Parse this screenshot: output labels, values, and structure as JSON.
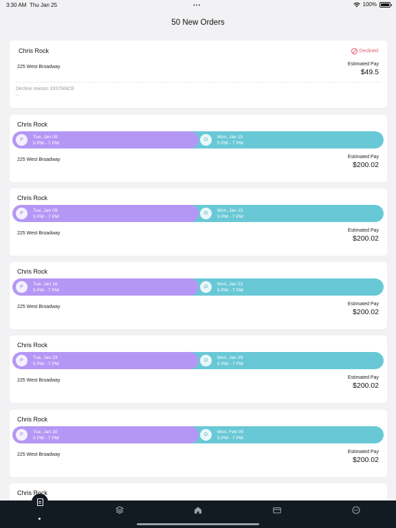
{
  "status_bar": {
    "time": "3:30 AM",
    "date": "Thu Jan 25",
    "battery": "100%"
  },
  "header": {
    "title": "50 New Orders"
  },
  "declined_order": {
    "name": "Chris Rock",
    "status": "Declined",
    "address": "225 West Broadway",
    "pay_label": "Estimated Pay",
    "pay_value": "$49.5",
    "decline_reason": "Decline reason: DISTANCE",
    "note": "--"
  },
  "orders": [
    {
      "name": "Chris Rock",
      "pickup_letter": "P",
      "pickup_date": "Tue, Jan 09",
      "pickup_time": "5 PM - 7 PM",
      "dropoff_letter": "D",
      "dropoff_date": "Mon, Jan 15",
      "dropoff_time": "5 PM - 7 PM",
      "address": "225 West Broadway",
      "pay_label": "Estimated Pay",
      "pay_value": "$200.02"
    },
    {
      "name": "Chris Rock",
      "pickup_letter": "P",
      "pickup_date": "Tue, Jan 09",
      "pickup_time": "5 PM - 7 PM",
      "dropoff_letter": "D",
      "dropoff_date": "Mon, Jan 15",
      "dropoff_time": "5 PM - 7 PM",
      "address": "225 West Broadway",
      "pay_label": "Estimated Pay",
      "pay_value": "$200.02"
    },
    {
      "name": "Chris Rock",
      "pickup_letter": "P",
      "pickup_date": "Tue, Jan 16",
      "pickup_time": "5 PM - 7 PM",
      "dropoff_letter": "D",
      "dropoff_date": "Mon, Jan 22",
      "dropoff_time": "5 PM - 7 PM",
      "address": "225 West Broadway",
      "pay_label": "Estimated Pay",
      "pay_value": "$200.02"
    },
    {
      "name": "Chris Rock",
      "pickup_letter": "P",
      "pickup_date": "Tue, Jan 23",
      "pickup_time": "5 PM - 7 PM",
      "dropoff_letter": "D",
      "dropoff_date": "Mon, Jan 29",
      "dropoff_time": "5 PM - 7 PM",
      "address": "225 West Broadway",
      "pay_label": "Estimated Pay",
      "pay_value": "$200.02"
    },
    {
      "name": "Chris Rock",
      "pickup_letter": "P",
      "pickup_date": "Tue, Jan 30",
      "pickup_time": "5 PM - 7 PM",
      "dropoff_letter": "D",
      "dropoff_date": "Mon, Feb 05",
      "dropoff_time": "5 PM - 7 PM",
      "address": "225 West Broadway",
      "pay_label": "Estimated Pay",
      "pay_value": "$200.02"
    },
    {
      "name": "Chris Rock"
    }
  ],
  "tabbar": {
    "tabs": [
      {
        "icon": "document-icon",
        "active": true
      },
      {
        "icon": "layers-icon"
      },
      {
        "icon": "home-icon"
      },
      {
        "icon": "card-icon"
      },
      {
        "icon": "more-icon"
      }
    ]
  },
  "colors": {
    "pickup": "#b497f5",
    "dropoff": "#69c8d6",
    "declined": "#e0566b",
    "tabbar": "#121a22"
  }
}
